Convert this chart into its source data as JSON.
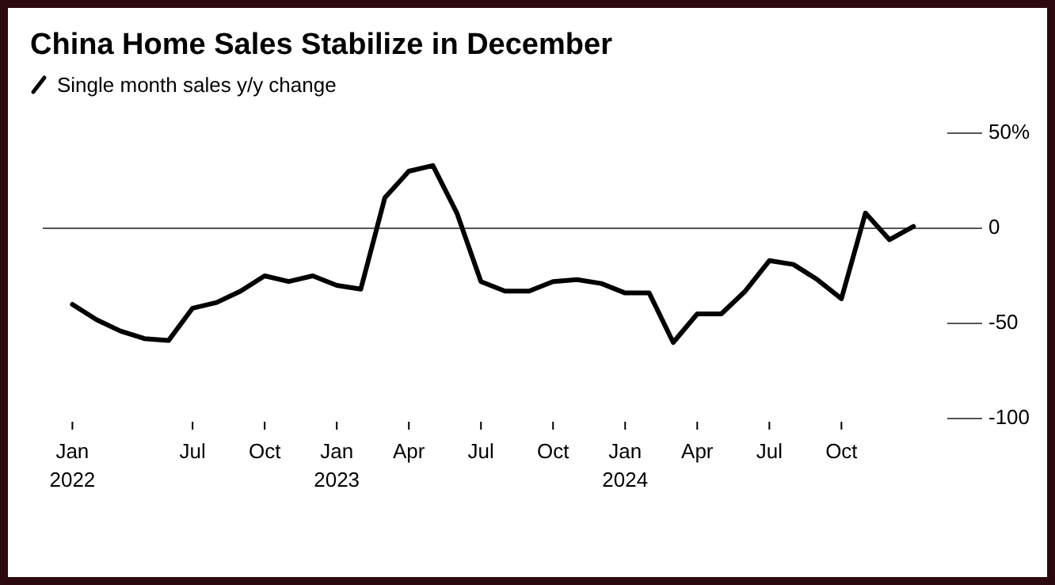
{
  "chart_data": {
    "type": "line",
    "title": "China Home Sales Stabilize in December",
    "categories": [
      "Jan 2022",
      null,
      null,
      null,
      null,
      "Jul",
      null,
      null,
      "Oct",
      null,
      null,
      "Jan 2023",
      null,
      null,
      "Apr",
      null,
      null,
      "Jul",
      null,
      null,
      "Oct",
      null,
      null,
      "Jan 2024",
      null,
      null,
      "Apr",
      null,
      null,
      "Jul",
      null,
      null,
      "Oct",
      null,
      null,
      null
    ],
    "series": [
      {
        "name": "Single month sales y/y change",
        "color": "#000000",
        "values": [
          -40,
          -48,
          -54,
          -58,
          -59,
          -42,
          -39,
          -33,
          -25,
          -28,
          -25,
          -30,
          -32,
          16,
          30,
          33,
          8,
          -28,
          -33,
          -33,
          -28,
          -27,
          -29,
          -34,
          -34,
          -60,
          -45,
          -45,
          -33,
          -17,
          -19,
          -27,
          -37,
          8,
          -6,
          1
        ]
      }
    ],
    "ylim": [
      -100,
      50
    ],
    "yticks": [
      {
        "value": 50,
        "label": "50%"
      },
      0,
      -50,
      -100
    ],
    "ref_lines": [
      {
        "axis": "y",
        "value": 0,
        "color": "#555555"
      }
    ],
    "legend": "top left",
    "grid": false,
    "marker": "none",
    "line_style": "solid"
  }
}
